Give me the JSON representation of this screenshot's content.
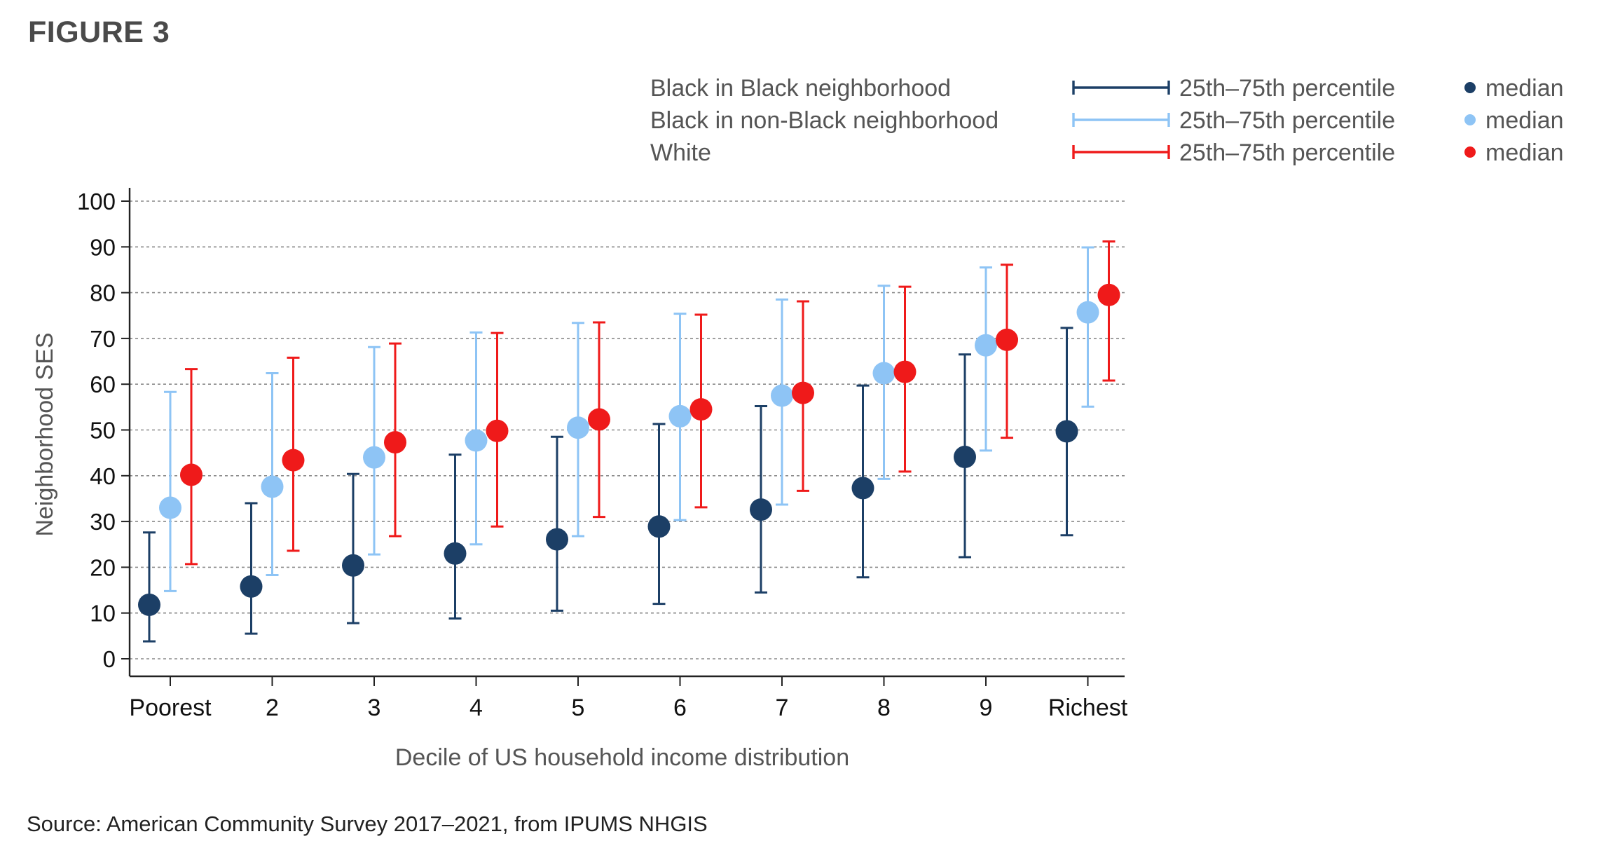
{
  "figure_label": "FIGURE 3",
  "source_note": "Source: American Community Survey 2017–2021, from IPUMS NHGIS",
  "colors": {
    "black_in_black": "#1c3f66",
    "black_in_nonblack": "#8ec4f5",
    "white": "#ef1a1a",
    "grid": "#8a8a8a",
    "axis": "#222222"
  },
  "chart_data": {
    "type": "scatter",
    "title": "",
    "xlabel": "Decile of US household income distribution",
    "ylabel": "Neighborhood SES",
    "ylim": [
      0,
      100
    ],
    "yticks": [
      0,
      10,
      20,
      30,
      40,
      50,
      60,
      70,
      80,
      90,
      100
    ],
    "grid": true,
    "legend_position": "top-right",
    "categories": [
      "Poorest",
      "2",
      "3",
      "4",
      "5",
      "6",
      "7",
      "8",
      "9",
      "Richest"
    ],
    "series": [
      {
        "name": "Black in Black neighborhood",
        "range_label": "25th–75th percentile",
        "median_label": "median",
        "color": "#1c3f66",
        "median": [
          11.8,
          15.8,
          20.4,
          23.0,
          26.1,
          28.9,
          32.6,
          37.3,
          44.1,
          49.7
        ],
        "p25": [
          3.8,
          5.5,
          7.8,
          8.8,
          10.5,
          12.0,
          14.5,
          17.8,
          22.2,
          27.0
        ],
        "p75": [
          27.6,
          34.0,
          40.4,
          44.6,
          48.5,
          51.3,
          55.2,
          59.7,
          66.5,
          72.3
        ]
      },
      {
        "name": "Black in non-Black neighborhood",
        "range_label": "25th–75th percentile",
        "median_label": "median",
        "color": "#8ec4f5",
        "median": [
          33.0,
          37.6,
          44.0,
          47.7,
          50.5,
          53.0,
          57.5,
          62.4,
          68.5,
          75.7
        ],
        "p25": [
          14.8,
          18.3,
          22.8,
          25.0,
          26.8,
          30.3,
          33.7,
          39.3,
          45.5,
          55.1
        ],
        "p75": [
          58.3,
          62.4,
          68.1,
          71.3,
          73.4,
          75.4,
          78.5,
          81.5,
          85.5,
          89.9
        ]
      },
      {
        "name": "White",
        "range_label": "25th–75th percentile",
        "median_label": "median",
        "color": "#ef1a1a",
        "median": [
          40.2,
          43.4,
          47.3,
          49.8,
          52.3,
          54.5,
          58.1,
          62.7,
          69.7,
          79.5
        ],
        "p25": [
          20.7,
          23.6,
          26.8,
          28.9,
          31.0,
          33.1,
          36.7,
          40.9,
          48.3,
          60.8
        ],
        "p75": [
          63.3,
          65.8,
          68.9,
          71.2,
          73.5,
          75.2,
          78.1,
          81.3,
          86.1,
          91.2
        ]
      }
    ]
  }
}
